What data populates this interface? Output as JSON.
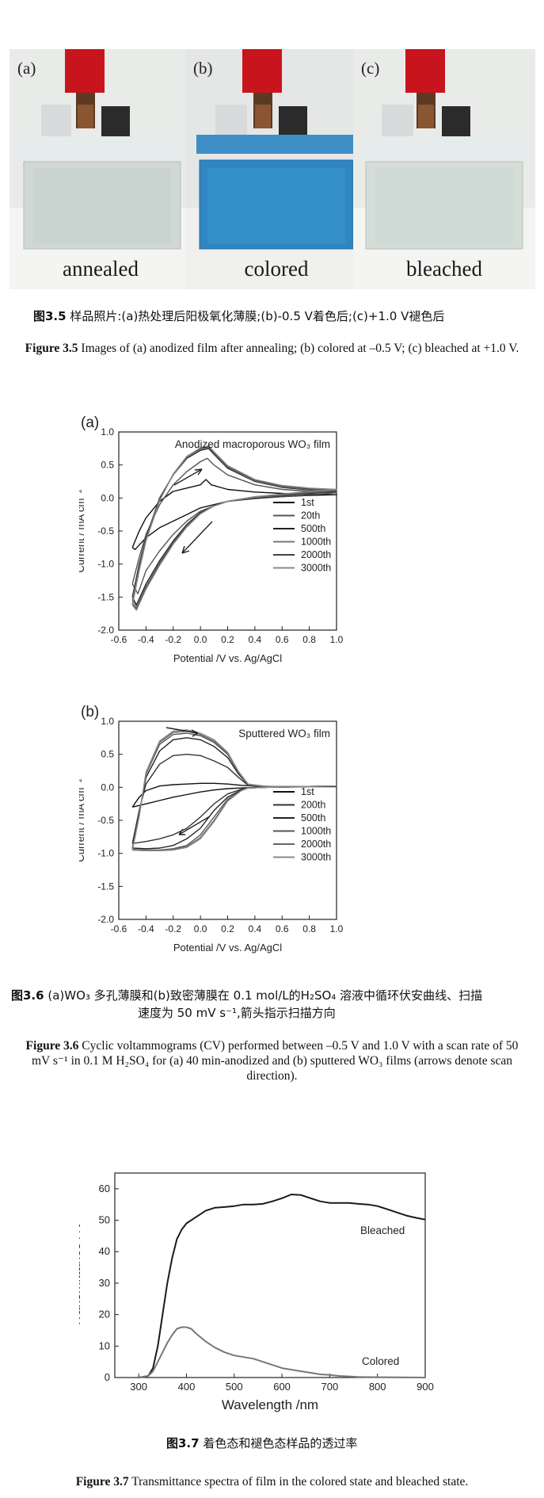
{
  "photos": [
    {
      "letter": "(a)",
      "label": "annealed"
    },
    {
      "letter": "(b)",
      "label": "colored"
    },
    {
      "letter": "(c)",
      "label": "bleached"
    }
  ],
  "captions": {
    "fig35_cn_num": "图3.5",
    "fig35_cn": "样品照片:(a)热处理后阳极氧化薄膜;(b)-0.5 V着色后;(c)+1.0 V褪色后",
    "fig35_en_num": "Figure 3.5",
    "fig35_en": "Images of (a) anodized film after annealing; (b) colored at –0.5 V; (c) bleached at +1.0 V.",
    "fig36_cn_num": "图3.6",
    "fig36_cn_line1": "(a)WO₃ 多孔薄膜和(b)致密薄膜在 0.1 mol/L的H₂SO₄ 溶液中循环伏安曲线、扫描",
    "fig36_cn_line2": "速度为 50 mV s⁻¹,箭头指示扫描方向",
    "fig36_en_num": "Figure 3.6",
    "fig36_en": "Cyclic voltammograms (CV) performed between –0.5 V and 1.0 V with a scan rate of 50 mV s⁻¹ in 0.1 M H₂SO₄ for (a) 40 min-anodized and (b) sputtered WO₃ films (arrows denote scan direction).",
    "fig37_cn_num": "图3.7",
    "fig37_cn": "着色态和褪色态样品的透过率",
    "fig37_en_num": "Figure 3.7",
    "fig37_en": "Transmittance spectra of film in the colored state and bleached state."
  },
  "chart_data": [
    {
      "type": "line",
      "panel": "(a)",
      "title": "Anodized macroporous WO₃ film",
      "xlabel": "Potential /V vs. Ag/AgCl",
      "ylabel": "Current / mA cm⁻²",
      "xlim": [
        -0.6,
        1.0
      ],
      "ylim": [
        -2.0,
        1.0
      ],
      "xticks": [
        "-0.6",
        "-0.4",
        "-0.2",
        "0.0",
        "0.2",
        "0.4",
        "0.6",
        "0.8",
        "1.0"
      ],
      "yticks": [
        "1.0",
        "0.5",
        "0.0",
        "-0.5",
        "-1.0",
        "-1.5",
        "-2.0"
      ],
      "legend_position": "right",
      "series": [
        {
          "name": "1st",
          "color": "#111111",
          "x": [
            -0.5,
            -0.45,
            -0.4,
            -0.3,
            -0.2,
            -0.1,
            0.0,
            0.04,
            0.08,
            0.2,
            0.4,
            0.6,
            0.8,
            1.0,
            0.8,
            0.6,
            0.4,
            0.2,
            0.1,
            0.0,
            -0.1,
            -0.2,
            -0.3,
            -0.4,
            -0.48,
            -0.5
          ],
          "y": [
            -0.75,
            -0.5,
            -0.3,
            -0.05,
            0.1,
            0.15,
            0.2,
            0.28,
            0.2,
            0.13,
            0.09,
            0.07,
            0.06,
            0.05,
            0.04,
            0.02,
            0.0,
            -0.05,
            -0.1,
            -0.15,
            -0.25,
            -0.35,
            -0.45,
            -0.6,
            -0.78,
            -0.75
          ]
        },
        {
          "name": "20th",
          "color": "#555555",
          "x": [
            -0.5,
            -0.45,
            -0.4,
            -0.3,
            -0.2,
            -0.1,
            0.0,
            0.05,
            0.1,
            0.2,
            0.4,
            0.6,
            0.8,
            1.0,
            0.8,
            0.6,
            0.4,
            0.2,
            0.1,
            0.0,
            -0.1,
            -0.2,
            -0.3,
            -0.4,
            -0.46,
            -0.5
          ],
          "y": [
            -1.3,
            -0.9,
            -0.55,
            -0.1,
            0.2,
            0.4,
            0.55,
            0.6,
            0.5,
            0.35,
            0.2,
            0.13,
            0.1,
            0.08,
            0.05,
            0.02,
            -0.01,
            -0.05,
            -0.12,
            -0.2,
            -0.35,
            -0.55,
            -0.8,
            -1.1,
            -1.45,
            -1.3
          ]
        },
        {
          "name": "500th",
          "color": "#222222",
          "x": [
            -0.5,
            -0.45,
            -0.4,
            -0.3,
            -0.2,
            -0.1,
            0.0,
            0.06,
            0.1,
            0.2,
            0.4,
            0.6,
            0.8,
            1.0,
            0.8,
            0.6,
            0.4,
            0.2,
            0.1,
            0.0,
            -0.1,
            -0.2,
            -0.3,
            -0.4,
            -0.47,
            -0.5
          ],
          "y": [
            -1.5,
            -1.0,
            -0.6,
            0.0,
            0.35,
            0.6,
            0.72,
            0.75,
            0.66,
            0.45,
            0.25,
            0.16,
            0.12,
            0.1,
            0.07,
            0.03,
            0.0,
            -0.05,
            -0.12,
            -0.22,
            -0.4,
            -0.65,
            -0.95,
            -1.3,
            -1.62,
            -1.5
          ]
        },
        {
          "name": "1000th",
          "color": "#777777",
          "x": [
            -0.5,
            -0.45,
            -0.4,
            -0.3,
            -0.2,
            -0.1,
            0.0,
            0.06,
            0.1,
            0.2,
            0.4,
            0.6,
            0.8,
            1.0,
            0.8,
            0.6,
            0.4,
            0.2,
            0.1,
            0.0,
            -0.1,
            -0.2,
            -0.3,
            -0.4,
            -0.47,
            -0.5
          ],
          "y": [
            -1.55,
            -1.05,
            -0.62,
            -0.02,
            0.35,
            0.62,
            0.74,
            0.77,
            0.68,
            0.47,
            0.26,
            0.17,
            0.13,
            0.11,
            0.08,
            0.04,
            0.01,
            -0.05,
            -0.12,
            -0.23,
            -0.42,
            -0.67,
            -0.98,
            -1.34,
            -1.65,
            -1.55
          ]
        },
        {
          "name": "2000th",
          "color": "#444444",
          "x": [
            -0.5,
            -0.45,
            -0.4,
            -0.3,
            -0.2,
            -0.1,
            0.0,
            0.06,
            0.1,
            0.2,
            0.4,
            0.6,
            0.8,
            1.0,
            0.8,
            0.6,
            0.4,
            0.2,
            0.1,
            0.0,
            -0.1,
            -0.2,
            -0.3,
            -0.4,
            -0.47,
            -0.5
          ],
          "y": [
            -1.6,
            -1.08,
            -0.64,
            -0.03,
            0.36,
            0.63,
            0.75,
            0.78,
            0.69,
            0.48,
            0.27,
            0.18,
            0.14,
            0.12,
            0.09,
            0.05,
            0.02,
            -0.05,
            -0.12,
            -0.23,
            -0.43,
            -0.68,
            -1.0,
            -1.36,
            -1.68,
            -1.6
          ]
        },
        {
          "name": "3000th",
          "color": "#888888",
          "x": [
            -0.5,
            -0.45,
            -0.4,
            -0.3,
            -0.2,
            -0.1,
            0.0,
            0.06,
            0.1,
            0.2,
            0.4,
            0.6,
            0.8,
            1.0,
            0.8,
            0.6,
            0.4,
            0.2,
            0.1,
            0.0,
            -0.1,
            -0.2,
            -0.3,
            -0.4,
            -0.47,
            -0.5
          ],
          "y": [
            -1.62,
            -1.1,
            -0.65,
            -0.04,
            0.36,
            0.63,
            0.76,
            0.79,
            0.7,
            0.49,
            0.28,
            0.19,
            0.15,
            0.13,
            0.1,
            0.06,
            0.02,
            -0.05,
            -0.12,
            -0.24,
            -0.44,
            -0.7,
            -1.02,
            -1.38,
            -1.7,
            -1.62
          ]
        }
      ]
    },
    {
      "type": "line",
      "panel": "(b)",
      "title": "Sputtered WO₃ film",
      "xlabel": "Potential /V vs. Ag/AgCl",
      "ylabel": "Current / mA cm⁻²",
      "xlim": [
        -0.6,
        1.0
      ],
      "ylim": [
        -2.0,
        1.0
      ],
      "xticks": [
        "-0.6",
        "-0.4",
        "-0.2",
        "0.0",
        "0.2",
        "0.4",
        "0.6",
        "0.8",
        "1.0"
      ],
      "yticks": [
        "1.0",
        "0.5",
        "0.0",
        "-0.5",
        "-1.0",
        "-1.5",
        "-2.0"
      ],
      "legend_position": "right",
      "series": [
        {
          "name": "1st",
          "color": "#111111",
          "x": [
            -0.5,
            -0.45,
            -0.4,
            -0.3,
            -0.2,
            -0.1,
            0.0,
            0.1,
            0.2,
            0.3,
            0.4,
            0.6,
            0.8,
            1.0,
            0.8,
            0.6,
            0.4,
            0.3,
            0.2,
            0.1,
            0.0,
            -0.1,
            -0.2,
            -0.3,
            -0.4,
            -0.5
          ],
          "y": [
            -0.3,
            -0.15,
            -0.05,
            0.02,
            0.04,
            0.05,
            0.06,
            0.06,
            0.05,
            0.03,
            0.02,
            0.01,
            0.01,
            0.01,
            0.01,
            0.0,
            0.0,
            -0.01,
            -0.02,
            -0.04,
            -0.07,
            -0.11,
            -0.15,
            -0.2,
            -0.25,
            -0.3
          ]
        },
        {
          "name": "200th",
          "color": "#333333",
          "x": [
            -0.5,
            -0.45,
            -0.4,
            -0.3,
            -0.2,
            -0.1,
            0.0,
            0.1,
            0.2,
            0.28,
            0.35,
            0.5,
            0.7,
            1.0,
            0.7,
            0.5,
            0.35,
            0.3,
            0.2,
            0.1,
            0.0,
            -0.1,
            -0.2,
            -0.3,
            -0.4,
            -0.5
          ],
          "y": [
            -0.85,
            -0.35,
            0.05,
            0.35,
            0.48,
            0.5,
            0.48,
            0.4,
            0.3,
            0.15,
            0.03,
            0.01,
            0.01,
            0.02,
            0.01,
            0.0,
            -0.01,
            -0.03,
            -0.1,
            -0.25,
            -0.45,
            -0.62,
            -0.72,
            -0.78,
            -0.82,
            -0.85
          ]
        },
        {
          "name": "500th",
          "color": "#222222",
          "x": [
            -0.5,
            -0.45,
            -0.4,
            -0.3,
            -0.2,
            -0.1,
            0.0,
            0.1,
            0.2,
            0.28,
            0.35,
            0.5,
            0.7,
            1.0,
            0.7,
            0.5,
            0.35,
            0.3,
            0.2,
            0.1,
            0.0,
            -0.1,
            -0.2,
            -0.3,
            -0.4,
            -0.5
          ],
          "y": [
            -0.92,
            -0.4,
            0.15,
            0.55,
            0.72,
            0.75,
            0.72,
            0.62,
            0.45,
            0.2,
            0.04,
            0.01,
            0.01,
            0.02,
            0.01,
            0.0,
            -0.01,
            -0.04,
            -0.15,
            -0.35,
            -0.62,
            -0.78,
            -0.88,
            -0.92,
            -0.93,
            -0.92
          ]
        },
        {
          "name": "1000th",
          "color": "#555555",
          "x": [
            -0.5,
            -0.45,
            -0.4,
            -0.3,
            -0.2,
            -0.1,
            0.0,
            0.1,
            0.2,
            0.28,
            0.35,
            0.5,
            0.7,
            1.0,
            0.7,
            0.5,
            0.35,
            0.3,
            0.2,
            0.1,
            0.0,
            -0.1,
            -0.2,
            -0.3,
            -0.4,
            -0.5
          ],
          "y": [
            -0.94,
            -0.42,
            0.2,
            0.65,
            0.8,
            0.82,
            0.78,
            0.68,
            0.5,
            0.22,
            0.04,
            0.01,
            0.01,
            0.02,
            0.01,
            0.0,
            -0.01,
            -0.05,
            -0.18,
            -0.45,
            -0.72,
            -0.88,
            -0.93,
            -0.95,
            -0.95,
            -0.94
          ]
        },
        {
          "name": "2000th",
          "color": "#666666",
          "x": [
            -0.5,
            -0.45,
            -0.4,
            -0.3,
            -0.2,
            -0.1,
            0.0,
            0.1,
            0.2,
            0.28,
            0.35,
            0.5,
            0.7,
            1.0,
            0.7,
            0.5,
            0.35,
            0.3,
            0.2,
            0.1,
            0.0,
            -0.1,
            -0.2,
            -0.3,
            -0.4,
            -0.5
          ],
          "y": [
            -0.95,
            -0.43,
            0.22,
            0.68,
            0.83,
            0.85,
            0.8,
            0.7,
            0.52,
            0.23,
            0.04,
            0.01,
            0.01,
            0.02,
            0.01,
            0.0,
            -0.01,
            -0.05,
            -0.2,
            -0.5,
            -0.76,
            -0.9,
            -0.94,
            -0.96,
            -0.96,
            -0.95
          ]
        },
        {
          "name": "3000th",
          "color": "#888888",
          "x": [
            -0.5,
            -0.45,
            -0.4,
            -0.3,
            -0.2,
            -0.1,
            0.0,
            0.1,
            0.2,
            0.28,
            0.35,
            0.5,
            0.7,
            1.0,
            0.7,
            0.5,
            0.35,
            0.3,
            0.2,
            0.1,
            0.0,
            -0.1,
            -0.2,
            -0.3,
            -0.4,
            -0.5
          ],
          "y": [
            -0.95,
            -0.44,
            0.23,
            0.7,
            0.85,
            0.87,
            0.82,
            0.72,
            0.53,
            0.24,
            0.05,
            0.01,
            0.01,
            0.02,
            0.01,
            0.0,
            -0.01,
            -0.05,
            -0.21,
            -0.52,
            -0.78,
            -0.91,
            -0.95,
            -0.96,
            -0.96,
            -0.95
          ]
        }
      ]
    },
    {
      "type": "line",
      "panel": "3.7",
      "title": "",
      "xlabel": "Wavelength /nm",
      "ylabel": "Transmittance /%",
      "xlim": [
        250,
        900
      ],
      "ylim": [
        0,
        65
      ],
      "xticks": [
        "300",
        "400",
        "500",
        "600",
        "700",
        "800",
        "900"
      ],
      "yticks": [
        "0",
        "10",
        "20",
        "30",
        "40",
        "50",
        "60"
      ],
      "annotations": [
        "Bleached",
        "Colored"
      ],
      "series": [
        {
          "name": "Bleached",
          "color": "#1a1a1a",
          "x": [
            300,
            320,
            330,
            340,
            350,
            360,
            370,
            380,
            390,
            400,
            420,
            440,
            460,
            480,
            500,
            520,
            540,
            560,
            580,
            600,
            620,
            640,
            660,
            680,
            700,
            720,
            740,
            760,
            780,
            800,
            820,
            840,
            860,
            880,
            900
          ],
          "y": [
            0,
            0.5,
            3,
            10,
            20,
            30,
            38,
            44,
            47,
            49,
            51,
            53,
            54,
            54.2,
            54.5,
            55,
            55,
            55.2,
            56,
            57,
            58.2,
            58,
            57,
            56,
            55.5,
            55.5,
            55.5,
            55.2,
            55,
            54.5,
            53.5,
            52.5,
            51.5,
            50.8,
            50.2
          ]
        },
        {
          "name": "Colored",
          "color": "#777777",
          "x": [
            300,
            320,
            330,
            340,
            350,
            360,
            370,
            380,
            390,
            400,
            410,
            420,
            440,
            460,
            480,
            500,
            520,
            540,
            560,
            580,
            600,
            620,
            640,
            660,
            680,
            700,
            720,
            760,
            800,
            850,
            900
          ],
          "y": [
            0,
            0.5,
            2,
            5,
            8,
            11,
            13.5,
            15.5,
            16,
            16,
            15.5,
            14,
            11.5,
            9.5,
            8,
            7,
            6.5,
            6,
            5,
            4,
            3,
            2.5,
            2,
            1.5,
            1,
            0.8,
            0.5,
            0.2,
            0.1,
            0.05,
            0
          ]
        }
      ]
    }
  ]
}
